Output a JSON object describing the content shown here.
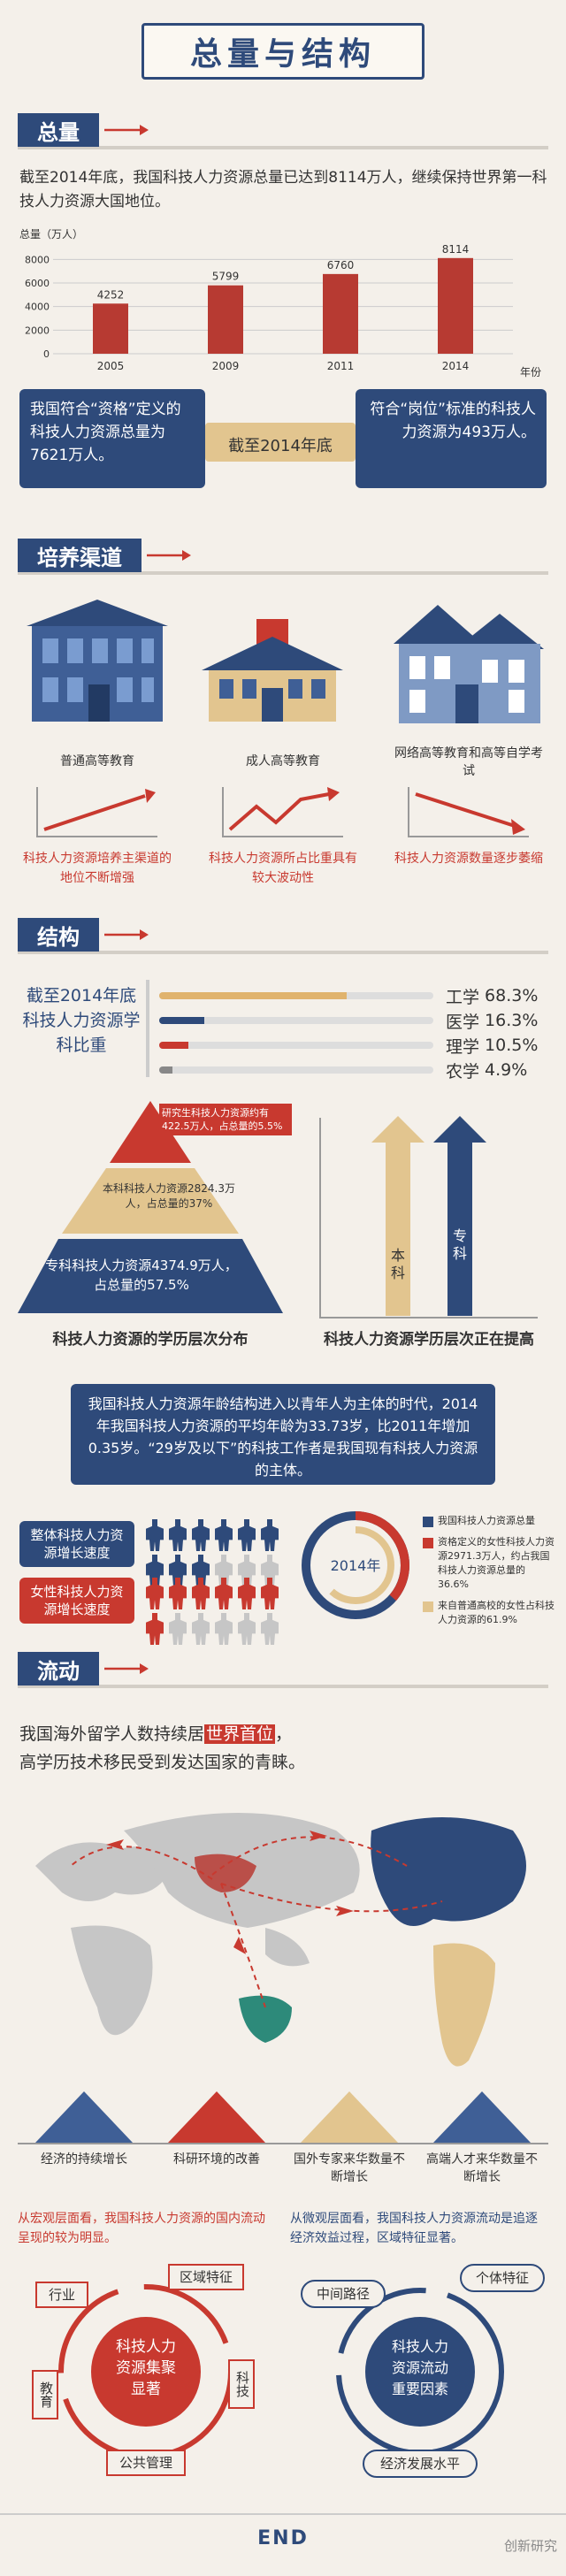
{
  "title": "总量与结构",
  "sections": {
    "total": "总量",
    "channels": "培养渠道",
    "structure": "结构",
    "flow": "流动"
  },
  "intro": "截至2014年底，我国科技人力资源总量已达到8114万人，继续保持世界第一科技人力资源大国地位。",
  "chart_data": [
    {
      "type": "bar",
      "ylabel": "总量（万人）",
      "xlabel": "年份",
      "categories": [
        "2005",
        "2009",
        "2011",
        "2014"
      ],
      "values": [
        4252,
        5799,
        6760,
        8114
      ],
      "yticks": [
        "0",
        "2000",
        "4000",
        "6000",
        "8000"
      ],
      "ylim": [
        0,
        9000
      ],
      "color": "#b73a32",
      "grid": true
    },
    {
      "type": "bar",
      "orientation": "horizontal",
      "title": "截至2014年底科技人力资源学科比重",
      "categories": [
        "工学",
        "医学",
        "理学",
        "农学"
      ],
      "values": [
        68.3,
        16.3,
        10.5,
        4.9
      ],
      "colors": [
        "#e0b36d",
        "#2e4a7a",
        "#c8392f",
        "#888888"
      ]
    }
  ],
  "summary": {
    "left": "我国符合“资格”定义的科技人力资源总量为7621万人。",
    "center": "截至2014年底",
    "right": "符合“岗位”标准的科技人力资源为493万人。"
  },
  "channels": [
    {
      "label": "普通高等教育",
      "desc": "科技人力资源培养主渠道的地位不断增强"
    },
    {
      "label": "成人高等教育",
      "desc": "科技人力资源所占比重具有较大波动性"
    },
    {
      "label": "网络高等教育和高等自学考试",
      "desc": "科技人力资源数量逐步萎缩"
    }
  ],
  "subjects": {
    "caption": "截至2014年底科技人力资源学科比重",
    "items": [
      {
        "name": "工学",
        "value": "68.3%"
      },
      {
        "name": "医学",
        "value": "16.3%"
      },
      {
        "name": "理学",
        "value": "10.5%"
      },
      {
        "name": "农学",
        "value": "4.9%"
      }
    ]
  },
  "pyramid": {
    "top": "研究生科技人力资源约有422.5万人，占总量的5.5%",
    "mid": "本科科技人力资源2824.3万人，占总量的37%",
    "bottom": "专科科技人力资源4374.9万人，占总量的57.5%",
    "caption": "科技人力资源的学历层次分布"
  },
  "arrows": {
    "left": "本科",
    "right": "专科",
    "caption": "科技人力资源学历层次正在提高"
  },
  "age_text": "我国科技人力资源年龄结构进入以青年人为主体的时代，2014年我国科技人力资源的平均年龄为33.73岁，比2011年增加0.35岁。“29岁及以下”的科技工作者是我国现有科技人力资源的主体。",
  "growth": {
    "overall": "整体科技人力资源增长速度",
    "female": "女性科技人力资源增长速度",
    "donut_year": "2014年",
    "legend": [
      "我国科技人力资源总量",
      "资格定义的女性科技人力资源2971.3万人，约占我国科技人力资源总量的36.6%",
      "来自普通高校的女性占科技人力资源的61.9%"
    ]
  },
  "flow_text": {
    "line1_a": "我国海外留学人数持续居",
    "line1_b": "世界首位",
    "line1_c": "，",
    "line2": "高学历技术移民受到发达国家的青睐。"
  },
  "factors": [
    "经济的持续增长",
    "科研环境的改善",
    "国外专家来华数量不断增长",
    "高端人才来华数量不断增长"
  ],
  "macro": {
    "text": "从宏观层面看，我国科技人力资源的国内流动呈现的较为明显。",
    "center": "科技人力资源集聚显著",
    "nodes": [
      "行业",
      "区域特征",
      "科技",
      "公共管理",
      "教育"
    ]
  },
  "micro": {
    "text": "从微观层面看，我国科技人力资源流动是追逐经济效益过程，区域特征显著。",
    "center": "科技人力资源流动重要因素",
    "nodes": [
      "中间路径",
      "个体特征",
      "经济发展水平"
    ]
  },
  "footer": {
    "end": "END",
    "watermark": "创新研究"
  }
}
